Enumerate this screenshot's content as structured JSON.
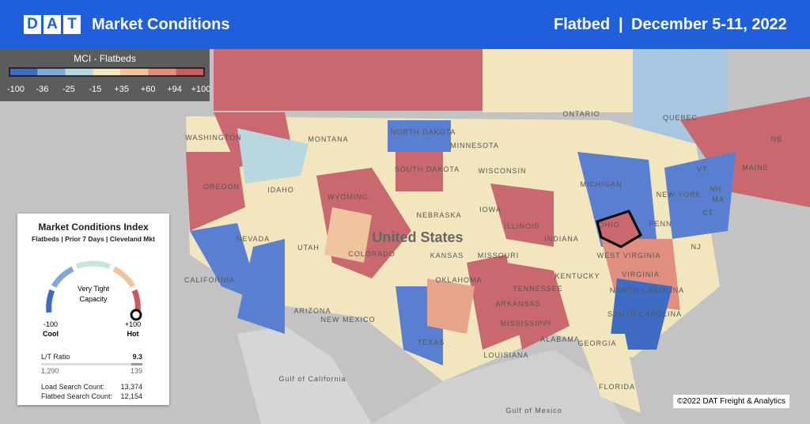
{
  "header": {
    "logo": "DAT",
    "title": "Market Conditions",
    "equipment": "Flatbed",
    "divider": "|",
    "date": "December 5-11, 2022"
  },
  "legend": {
    "title": "MCI - Flatbeds",
    "colors": [
      "#3f6cc2",
      "#7fa7d8",
      "#b9d7df",
      "#f3e7c2",
      "#efc49f",
      "#e08f80",
      "#c95a60"
    ],
    "labels": [
      "-100",
      "-36",
      "-25",
      "-15",
      "+35",
      "+60",
      "+94",
      "+100"
    ]
  },
  "map_labels": [
    "ONTARIO",
    "QUEBEC",
    "WASHINGTON",
    "MONTANA",
    "NORTH DAKOTA",
    "MINNESOTA",
    "OREGON",
    "IDAHO",
    "SOUTH DAKOTA",
    "WISCONSIN",
    "MICHIGAN",
    "WYOMING",
    "NEBRASKA",
    "IOWA",
    "United States",
    "NEVADA",
    "UTAH",
    "COLORADO",
    "KANSAS",
    "ILLINOIS",
    "INDIANA",
    "OHIO",
    "PENN",
    "NEW YORK",
    "CALIFORNIA",
    "MISSOURI",
    "WEST VIRGINIA",
    "VIRGINIA",
    "KENTUCKY",
    "OKLAHOMA",
    "ARIZONA",
    "NEW MEXICO",
    "TENNESSEE",
    "NORTH CAROLINA",
    "ARKANSAS",
    "SOUTH CAROLINA",
    "MISSISSIPPI",
    "ALABAMA",
    "GEORGIA",
    "TEXAS",
    "LOUISIANA",
    "FLORIDA",
    "MAINE",
    "NB",
    "VT",
    "NH",
    "MA",
    "CT",
    "NJ",
    "Gulf of California",
    "Gulf of Mexico"
  ],
  "card": {
    "title": "Market Conditions Index",
    "subtitle": "Flatbeds | Prior 7 Days | Cleveland Mkt",
    "status": [
      "Very Tight",
      "Capacity"
    ],
    "min_value": "-100",
    "min_name": "Cool",
    "max_value": "+100",
    "max_name": "Hot",
    "ratio_label": "L/T Ratio",
    "ratio_value": "9.3",
    "loads": "1,290",
    "trucks": "139",
    "stats": [
      {
        "label": "Load Search Count:",
        "value": "13,374"
      },
      {
        "label": "Flatbed Search Count:",
        "value": "12,154"
      }
    ]
  },
  "copyright": "©2022 DAT Freight & Analytics"
}
